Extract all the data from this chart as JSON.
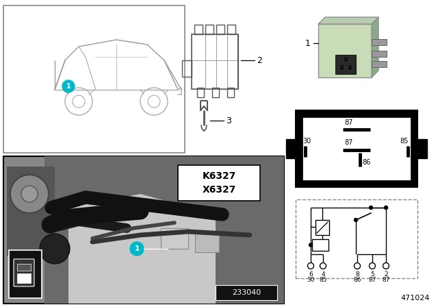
{
  "bg_color": "#ffffff",
  "cyan_color": "#00b8c8",
  "relay_green": "#b8ccb0",
  "relay_green2": "#c8dcb8",
  "relay_dark_gray": "#444444",
  "diagram_number": "471024",
  "photo_label": "233040",
  "k_label": "K6327",
  "x_label": "X6327",
  "pin_top_nums": [
    "6",
    "4",
    "8",
    "5",
    "2"
  ],
  "pin_bot_nums": [
    "30",
    "85",
    "86",
    "87",
    "87"
  ],
  "pin_diag": {
    "top87": "87",
    "left30": "30",
    "mid87": "87",
    "right85": "85",
    "bot86": "86"
  }
}
